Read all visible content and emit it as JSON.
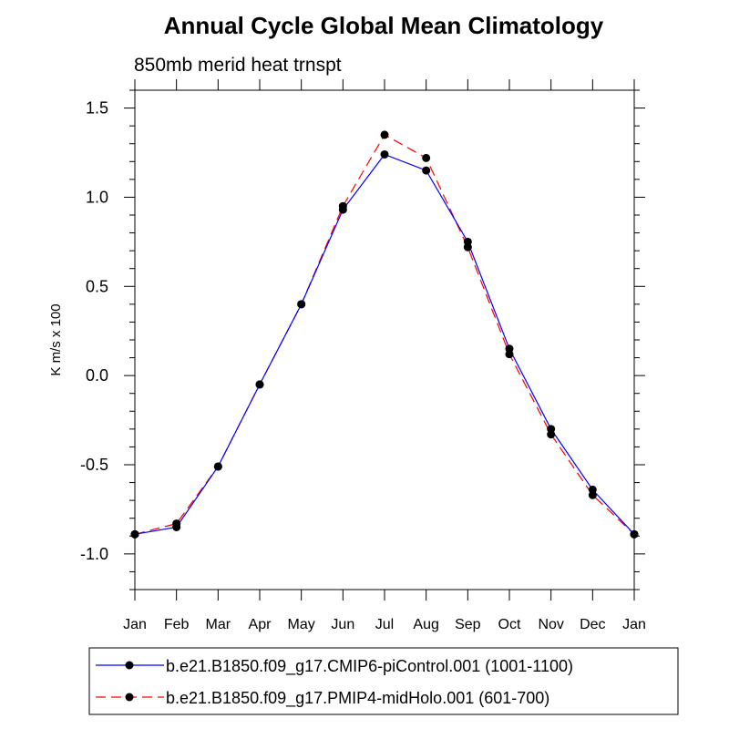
{
  "chart_data": {
    "type": "line",
    "title": "Annual Cycle Global Mean Climatology",
    "subtitle": "850mb merid heat trnspt",
    "ylabel": "K m/s x 100",
    "xlabel": "",
    "categories": [
      "Jan",
      "Feb",
      "Mar",
      "Apr",
      "May",
      "Jun",
      "Jul",
      "Aug",
      "Sep",
      "Oct",
      "Nov",
      "Dec",
      "Jan"
    ],
    "ylim": [
      -1.2,
      1.6
    ],
    "yticks": [
      -1.0,
      -0.5,
      0.0,
      0.5,
      1.0,
      1.5
    ],
    "ytick_labels": [
      "-1.0",
      "-0.5",
      "0.0",
      "0.5",
      "1.0",
      "1.5"
    ],
    "grid": false,
    "legend_position": "bottom",
    "series": [
      {
        "name": "b.e21.B1850.f09_g17.CMIP6-piControl.001 (1001-1100)",
        "color": "#0000ff",
        "dash": "solid",
        "values": [
          -0.89,
          -0.85,
          -0.51,
          -0.05,
          0.4,
          0.93,
          1.24,
          1.15,
          0.75,
          0.15,
          -0.3,
          -0.64,
          -0.89
        ]
      },
      {
        "name": "b.e21.B1850.f09_g17.PMIP4-midHolo.001 (601-700)",
        "color": "#ff0000",
        "dash": "dashed",
        "values": [
          -0.89,
          -0.83,
          -0.51,
          -0.05,
          0.4,
          0.95,
          1.35,
          1.22,
          0.72,
          0.12,
          -0.33,
          -0.67,
          -0.89
        ]
      }
    ]
  }
}
